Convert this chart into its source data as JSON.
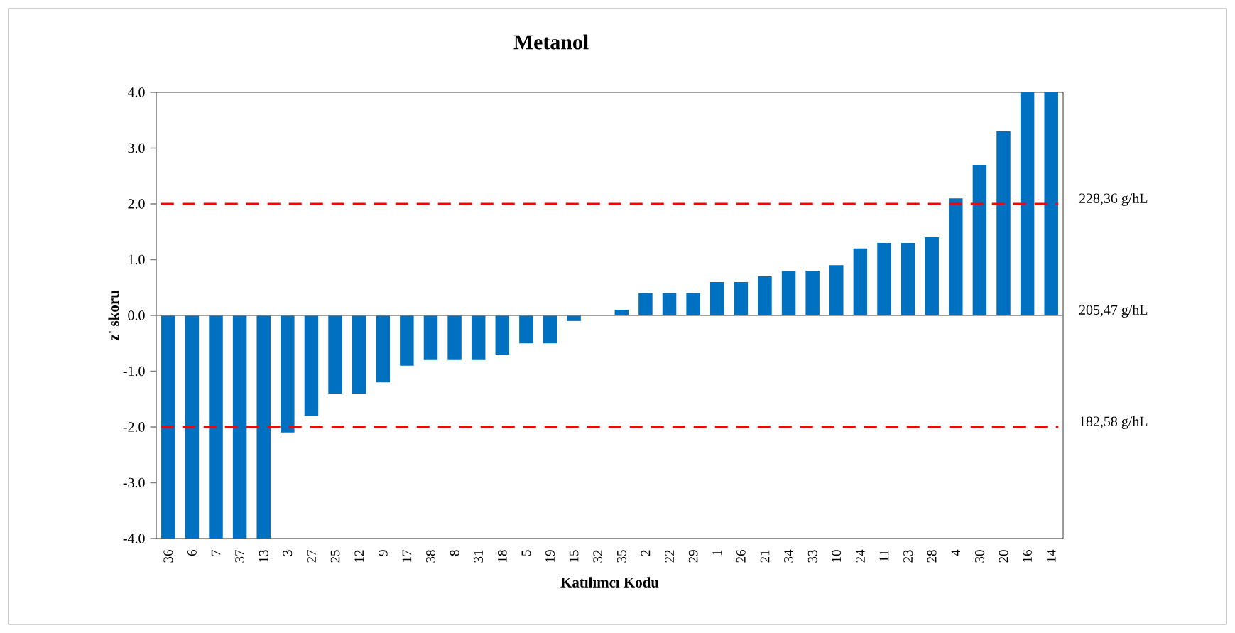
{
  "chart_data": {
    "type": "bar",
    "title": "Metanol",
    "xlabel": "Katılımcı Kodu",
    "ylabel": "z' skoru",
    "categories": [
      "36",
      "6",
      "7",
      "37",
      "13",
      "3",
      "27",
      "25",
      "12",
      "9",
      "17",
      "38",
      "8",
      "31",
      "18",
      "5",
      "19",
      "15",
      "32",
      "35",
      "2",
      "22",
      "29",
      "1",
      "26",
      "21",
      "34",
      "33",
      "10",
      "24",
      "11",
      "23",
      "28",
      "4",
      "30",
      "20",
      "16",
      "14"
    ],
    "values": [
      -4,
      -4,
      -4,
      -4,
      -4,
      -2.1,
      -1.8,
      -1.4,
      -1.4,
      -1.2,
      -0.9,
      -0.8,
      -0.8,
      -0.8,
      -0.7,
      -0.5,
      -0.5,
      -0.1,
      0,
      0.1,
      0.4,
      0.4,
      0.4,
      0.6,
      0.6,
      0.7,
      0.8,
      0.8,
      0.9,
      1.2,
      1.3,
      1.3,
      1.4,
      2.1,
      2.7,
      3.3,
      4,
      4
    ],
    "color": "#0070c0",
    "ylim": [
      -4,
      4
    ],
    "yticks": [
      {
        "value": -4,
        "label": "-4.0"
      },
      {
        "value": -3,
        "label": "-3.0"
      },
      {
        "value": -2,
        "label": "-2.0"
      },
      {
        "value": -1,
        "label": "-1.0"
      },
      {
        "value": 0,
        "label": "0.0"
      },
      {
        "value": 1,
        "label": "1.0"
      },
      {
        "value": 2,
        "label": "2.0"
      },
      {
        "value": 3,
        "label": "3.0"
      },
      {
        "value": 4,
        "label": "4.0"
      }
    ],
    "ref_lines": [
      {
        "axis": "y",
        "value": 2,
        "label": "228,36 g/hL",
        "color": "#ff0000",
        "line_style": "dashed"
      },
      {
        "axis": "y",
        "value": 0,
        "label": "205,47 g/hL",
        "color": "#808080",
        "line_style": "solid"
      },
      {
        "axis": "y",
        "value": -2,
        "label": "182,58 g/hL",
        "color": "#ff0000",
        "line_style": "dashed"
      }
    ],
    "grid": false
  }
}
